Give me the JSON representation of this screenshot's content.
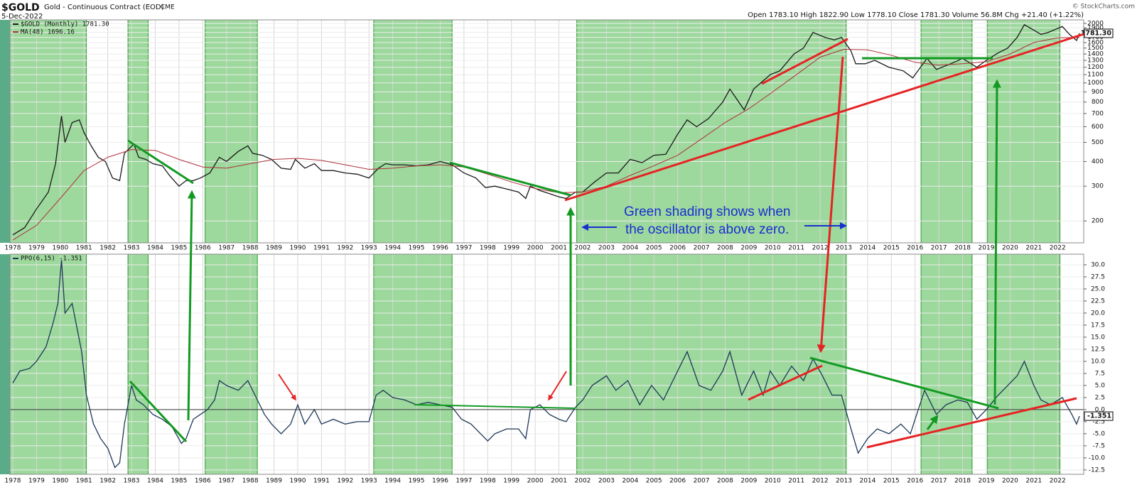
{
  "chart_data": [
    {
      "type": "line",
      "title": "$GOLD",
      "subtitle": "Gold - Continuous Contract (EOD)",
      "exchange": "CME",
      "date": "5-Dec-2022",
      "quote": "Open 1783.10 High 1822.90 Low 1778.10 Close 1781.30 Volume 56.8M Chg +21.40 (+1.22%)",
      "source": "© StockCharts.com",
      "annotation": [
        "Green shading shows when",
        "the oscillator is above zero."
      ],
      "log_scale": true,
      "grid": true,
      "xlim": [
        1977.88,
        2023.1
      ],
      "xticks": [
        1978,
        1979,
        1980,
        1981,
        1982,
        1983,
        1984,
        1985,
        1986,
        1987,
        1988,
        1989,
        1990,
        1991,
        1992,
        1993,
        1994,
        1995,
        1996,
        1997,
        1998,
        1999,
        2000,
        2001,
        2002,
        2003,
        2004,
        2005,
        2006,
        2007,
        2008,
        2009,
        2010,
        2011,
        2012,
        2013,
        2014,
        2015,
        2016,
        2017,
        2018,
        2019,
        2020,
        2021,
        2022
      ],
      "ylim": [
        155,
        2084
      ],
      "yticks": [
        200,
        300,
        400,
        500,
        600,
        700,
        800,
        900,
        1000,
        1100,
        1200,
        1300,
        1400,
        1500,
        1600,
        1700,
        1800,
        1900,
        2000
      ],
      "shading": [
        [
          1977.7,
          1981.1
        ],
        [
          1982.85,
          1983.7
        ],
        [
          1986.1,
          1988.3
        ],
        [
          1993.2,
          1996.5
        ],
        [
          2001.75,
          2013.1
        ],
        [
          2016.25,
          2018.4
        ],
        [
          2019.05,
          2022.1
        ]
      ],
      "shading_color": "#5cbf5c",
      "last_value": {
        "value": 1781.3,
        "label": "1781.30"
      },
      "series": [
        {
          "name": "$GOLD (Monthly) 1781.30",
          "color": "#1a1a1a",
          "x": [
            1978.0,
            1978.5,
            1979.0,
            1979.5,
            1979.8,
            1980.05,
            1980.2,
            1980.5,
            1980.8,
            1981.0,
            1981.3,
            1981.6,
            1981.9,
            1982.2,
            1982.5,
            1982.7,
            1983.1,
            1983.3,
            1983.6,
            1983.9,
            1984.3,
            1984.6,
            1985.0,
            1985.3,
            1985.6,
            1985.9,
            1986.3,
            1986.7,
            1987.0,
            1987.5,
            1987.9,
            1988.1,
            1988.5,
            1988.9,
            1989.3,
            1989.7,
            1989.9,
            1990.3,
            1990.7,
            1991.0,
            1991.5,
            1992.0,
            1992.5,
            1993.0,
            1993.4,
            1993.7,
            1994.0,
            1994.5,
            1995.0,
            1995.5,
            1996.0,
            1996.5,
            1997.0,
            1997.5,
            1997.9,
            1998.3,
            1998.8,
            1999.3,
            1999.6,
            1999.8,
            2000.2,
            2000.6,
            2001.0,
            2001.3,
            2001.7,
            2002.0,
            2002.5,
            2003.0,
            2003.5,
            2004.0,
            2004.5,
            2005.0,
            2005.5,
            2006.0,
            2006.4,
            2006.8,
            2007.3,
            2007.9,
            2008.2,
            2008.8,
            2009.2,
            2009.9,
            2010.3,
            2010.9,
            2011.3,
            2011.7,
            2012.2,
            2012.6,
            2012.9,
            2013.3,
            2013.5,
            2013.9,
            2014.3,
            2014.9,
            2015.5,
            2015.9,
            2016.5,
            2016.9,
            2017.5,
            2018.0,
            2018.6,
            2019.0,
            2019.5,
            2019.9,
            2020.3,
            2020.6,
            2021.0,
            2021.3,
            2021.6,
            2022.2,
            2022.5,
            2022.8,
            2022.92
          ],
          "values": [
            170,
            185,
            230,
            280,
            390,
            680,
            500,
            630,
            650,
            560,
            480,
            420,
            400,
            330,
            320,
            440,
            490,
            420,
            410,
            390,
            380,
            340,
            300,
            320,
            320,
            330,
            350,
            420,
            400,
            450,
            480,
            440,
            430,
            410,
            370,
            365,
            410,
            370,
            390,
            360,
            360,
            350,
            345,
            330,
            370,
            390,
            385,
            385,
            380,
            385,
            400,
            385,
            350,
            330,
            295,
            300,
            290,
            280,
            260,
            300,
            285,
            275,
            265,
            260,
            280,
            280,
            315,
            350,
            350,
            410,
            395,
            430,
            435,
            550,
            650,
            600,
            660,
            800,
            930,
            730,
            930,
            1100,
            1150,
            1400,
            1500,
            1800,
            1700,
            1650,
            1700,
            1450,
            1250,
            1250,
            1300,
            1200,
            1150,
            1060,
            1330,
            1170,
            1250,
            1330,
            1200,
            1300,
            1420,
            1500,
            1700,
            1970,
            1850,
            1760,
            1800,
            1930,
            1760,
            1640,
            1781.3
          ]
        },
        {
          "name": "MA(48) 1696.16",
          "color": "#b0303c",
          "x": [
            1978,
            1979,
            1980,
            1981,
            1982,
            1983,
            1984,
            1985,
            1986,
            1987,
            1988,
            1989,
            1990,
            1991,
            1992,
            1993,
            1994,
            1995,
            1996,
            1997,
            1998,
            1999,
            2000,
            2001,
            2002,
            2003,
            2004,
            2005,
            2006,
            2007,
            2008,
            2009,
            2010,
            2011,
            2012,
            2013,
            2014,
            2015,
            2016,
            2017,
            2018,
            2019,
            2020,
            2021,
            2022,
            2022.92
          ],
          "values": [
            160,
            190,
            260,
            360,
            420,
            460,
            455,
            410,
            375,
            370,
            390,
            410,
            415,
            405,
            385,
            365,
            370,
            380,
            385,
            375,
            345,
            315,
            292,
            278,
            280,
            300,
            340,
            380,
            430,
            520,
            630,
            740,
            900,
            1100,
            1350,
            1480,
            1470,
            1380,
            1270,
            1230,
            1250,
            1280,
            1400,
            1600,
            1690,
            1696.16
          ]
        }
      ]
    },
    {
      "type": "line",
      "grid": true,
      "zero_line": true,
      "xlim": [
        1977.88,
        2023.1
      ],
      "xticks": [
        1978,
        1979,
        1980,
        1981,
        1982,
        1983,
        1984,
        1985,
        1986,
        1987,
        1988,
        1989,
        1990,
        1991,
        1992,
        1993,
        1994,
        1995,
        1996,
        1997,
        1998,
        1999,
        2000,
        2001,
        2002,
        2003,
        2004,
        2005,
        2006,
        2007,
        2008,
        2009,
        2010,
        2011,
        2012,
        2013,
        2014,
        2015,
        2016,
        2017,
        2018,
        2019,
        2020,
        2021,
        2022
      ],
      "ylim": [
        -13.4,
        32.2
      ],
      "yticks": [
        -12.5,
        {
          "value": -10,
          "label": "-10.0"
        },
        -7.5,
        {
          "value": -5,
          "label": "-5.0"
        },
        -2.5,
        {
          "value": 0,
          "label": "0.0"
        },
        2.5,
        {
          "value": 5,
          "label": "5.0"
        },
        7.5,
        {
          "value": 10,
          "label": "10.0"
        },
        12.5,
        {
          "value": 15,
          "label": "15.0"
        },
        17.5,
        {
          "value": 20,
          "label": "20.0"
        },
        22.5,
        {
          "value": 25,
          "label": "25.0"
        },
        27.5,
        {
          "value": 30,
          "label": "30.0"
        }
      ],
      "shading": [
        [
          1977.7,
          1981.1
        ],
        [
          1982.85,
          1983.7
        ],
        [
          1986.1,
          1988.3
        ],
        [
          1993.2,
          1996.5
        ],
        [
          2001.75,
          2013.1
        ],
        [
          2016.25,
          2018.4
        ],
        [
          2019.05,
          2022.1
        ]
      ],
      "shading_color": "#5cbf5c",
      "last_value": {
        "value": -1.351,
        "label": "-1.351"
      },
      "series": [
        {
          "name": "PPO(6,15) -1.351",
          "color": "#1d3757",
          "x": [
            1978.0,
            1978.3,
            1978.7,
            1979.0,
            1979.4,
            1979.7,
            1979.9,
            1980.05,
            1980.2,
            1980.5,
            1980.7,
            1980.9,
            1981.1,
            1981.4,
            1981.7,
            1982.0,
            1982.3,
            1982.5,
            1982.7,
            1983.0,
            1983.2,
            1983.5,
            1983.9,
            1984.3,
            1984.7,
            1985.1,
            1985.3,
            1985.6,
            1985.9,
            1986.2,
            1986.5,
            1986.7,
            1987.0,
            1987.5,
            1987.9,
            1988.2,
            1988.6,
            1988.9,
            1989.3,
            1989.7,
            1990.0,
            1990.3,
            1990.7,
            1991.0,
            1991.5,
            1992.0,
            1992.5,
            1993.0,
            1993.3,
            1993.6,
            1994.0,
            1994.5,
            1995.0,
            1995.5,
            1996.0,
            1996.5,
            1996.9,
            1997.3,
            1997.7,
            1998.0,
            1998.3,
            1998.8,
            1999.3,
            1999.6,
            1999.8,
            2000.2,
            2000.6,
            2001.0,
            2001.3,
            2001.7,
            2002.0,
            2002.4,
            2003.0,
            2003.4,
            2003.9,
            2004.4,
            2004.9,
            2005.4,
            2006.0,
            2006.4,
            2006.9,
            2007.4,
            2007.9,
            2008.2,
            2008.7,
            2009.2,
            2009.6,
            2009.9,
            2010.3,
            2010.8,
            2011.3,
            2011.7,
            2012.1,
            2012.5,
            2012.9,
            2013.3,
            2013.6,
            2014.0,
            2014.4,
            2014.9,
            2015.4,
            2015.8,
            2016.4,
            2016.9,
            2017.3,
            2017.8,
            2018.2,
            2018.6,
            2019.0,
            2019.5,
            2019.9,
            2020.3,
            2020.6,
            2021.0,
            2021.3,
            2021.7,
            2022.2,
            2022.6,
            2022.8,
            2022.92
          ],
          "values": [
            5.5,
            8,
            8.5,
            10,
            13,
            18,
            22,
            31,
            20,
            22,
            17,
            12,
            3,
            -3,
            -6,
            -8,
            -12,
            -11,
            -3,
            5,
            2,
            1,
            -1,
            -2,
            -3.5,
            -7,
            -6,
            -2,
            -1,
            0,
            2,
            6,
            5,
            4,
            6,
            3,
            -1,
            -3,
            -5,
            -3,
            1,
            -3,
            0,
            -3,
            -2,
            -3,
            -2.5,
            -2.5,
            3,
            4,
            2.5,
            2,
            1,
            1.5,
            1,
            0.5,
            -2,
            -3,
            -5,
            -6.5,
            -5,
            -4,
            -4,
            -6,
            0,
            1,
            -1,
            -2,
            -2.5,
            0.5,
            2,
            5,
            7,
            4,
            6,
            1,
            5,
            2,
            8,
            12,
            5,
            4,
            8,
            12,
            3,
            8,
            3,
            8,
            5,
            9,
            6,
            10.5,
            7,
            3,
            3,
            -4,
            -9,
            -6,
            -4,
            -5,
            -3,
            -5,
            4,
            -1,
            1,
            2,
            1.5,
            -2,
            0,
            3,
            5,
            7,
            10,
            5,
            2,
            1,
            2.5,
            -1,
            -3,
            -1.351
          ]
        }
      ]
    }
  ]
}
